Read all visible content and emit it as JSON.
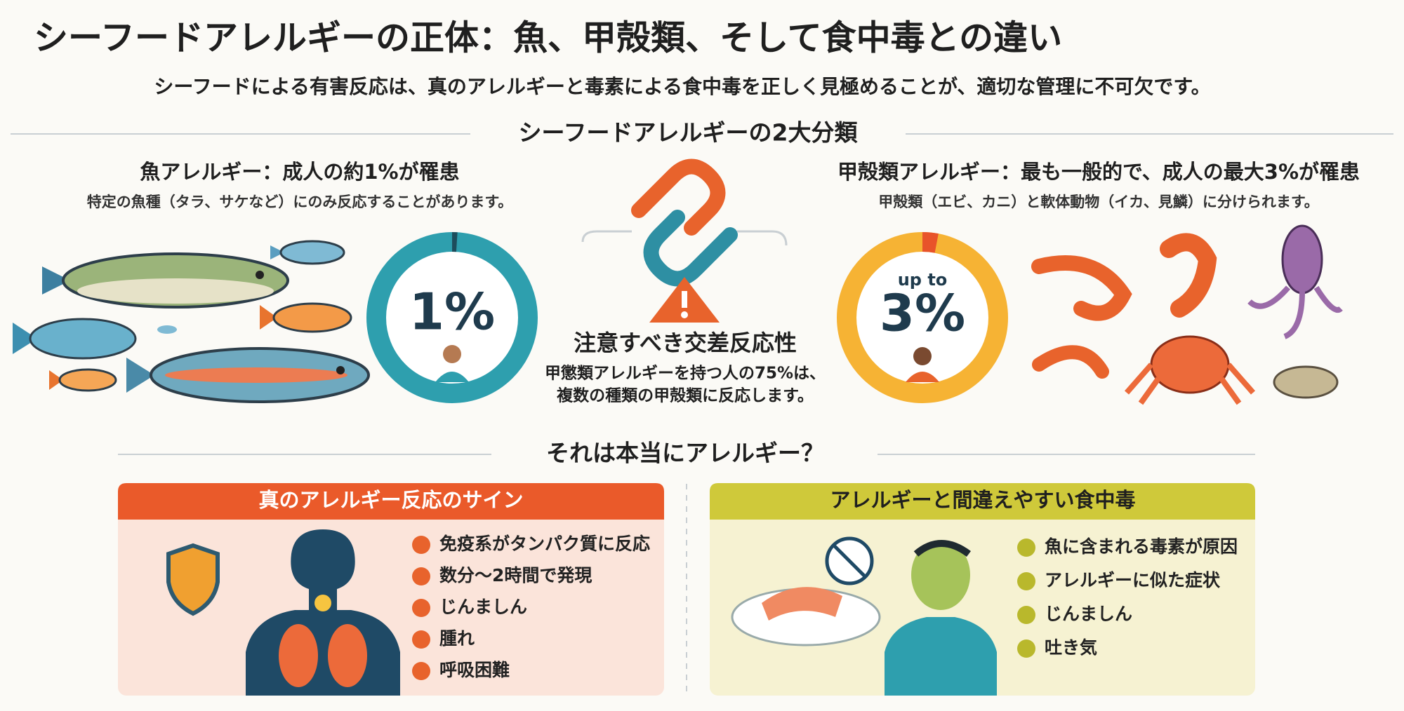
{
  "header": {
    "title": "シーフードアレルギーの正体：魚、甲殻類、そして食中毒との違い",
    "subtitle": "シーフードによる有害反応は、真のアレルギーと毒素による食中毒を正しく見極めることが、適切な管理に不可欠です。"
  },
  "classification": {
    "heading": "シーフードアレルギーの2大分類",
    "fish": {
      "title": "魚アレルギー：成人の約1%が罹患",
      "note": "特定の魚種（タラ、サケなど）にのみ反応することがあります。",
      "stat": {
        "value": 1,
        "label": "1%"
      }
    },
    "shellfish": {
      "title": "甲殻類アレルギー：最も一般的で、成人の最大3%が罹患",
      "note": "甲殻類（エビ、カニ）と軟体動物（イカ、見鱗）に分けられます。",
      "stat_prefix": "up to",
      "stat": {
        "value": 3,
        "label": "3%"
      }
    },
    "cross_reactivity": {
      "title": "注意すべき交差反応性",
      "lines": [
        "甲懲類アレルギーを持つ人の75%は、",
        "複数の種類の甲殻類に反応します。"
      ]
    }
  },
  "comparison": {
    "heading": "それは本当にアレルギー？",
    "allergy": {
      "title": "真のアレルギー反応のサイン",
      "items": [
        "免疫系がタンパク質に反応",
        "数分〜2時間で発現",
        "じんましん",
        "腫れ",
        "呼吸困難"
      ]
    },
    "poisoning": {
      "title": "アレルギーと間違えやすい食中毒",
      "items": [
        "魚に含まれる毒素が原因",
        "アレルギーに似た症状",
        "じんましん",
        "吐き気"
      ]
    }
  }
}
